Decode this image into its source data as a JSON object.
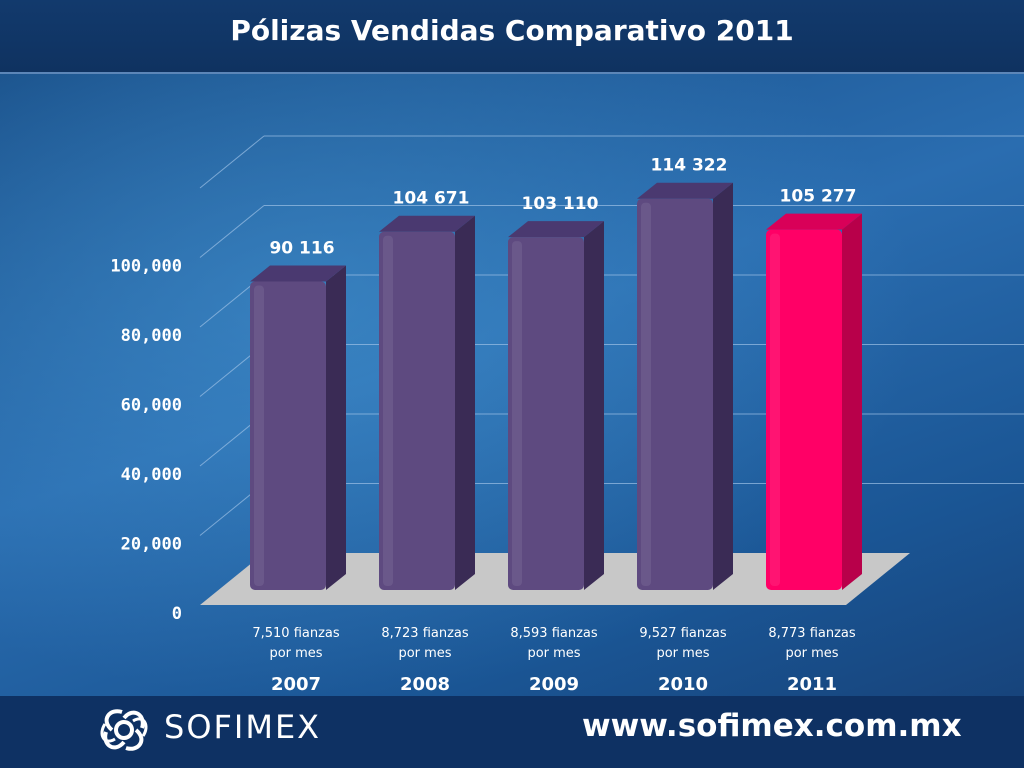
{
  "title": "Pólizas Vendidas Comparativo 2011",
  "chart_data": {
    "type": "bar",
    "title": "Pólizas Vendidas Comparativo 2011",
    "categories": [
      "2007",
      "2008",
      "2009",
      "2010",
      "2011"
    ],
    "values": [
      90116,
      104671,
      103110,
      114322,
      105277
    ],
    "value_labels": [
      "90 116",
      "104 671",
      "103 110",
      "114 322",
      "105 277"
    ],
    "sublabels": [
      [
        "7,510  fianzas",
        "por mes"
      ],
      [
        "8,723  fianzas",
        "por mes"
      ],
      [
        "8,593  fianzas",
        "por mes"
      ],
      [
        "9,527  fianzas",
        "por mes"
      ],
      [
        "8,773  fianzas",
        "por mes"
      ]
    ],
    "yticks": [
      "0",
      "20,000",
      "40,000",
      "60,000",
      "80,000",
      "100,000"
    ],
    "ylim": [
      0,
      120000
    ],
    "grid": true,
    "colors": {
      "bar": "#5e4a80",
      "bar_side": "#3a2b55",
      "bar_top": "#4a3970",
      "highlight": "#ff0066",
      "highlight_side": "#b8004a",
      "highlight_top": "#d90058"
    },
    "highlight_index": 4
  },
  "footer": {
    "brand": "SOFIMEX",
    "website": "www.sofimex.com.mx"
  }
}
